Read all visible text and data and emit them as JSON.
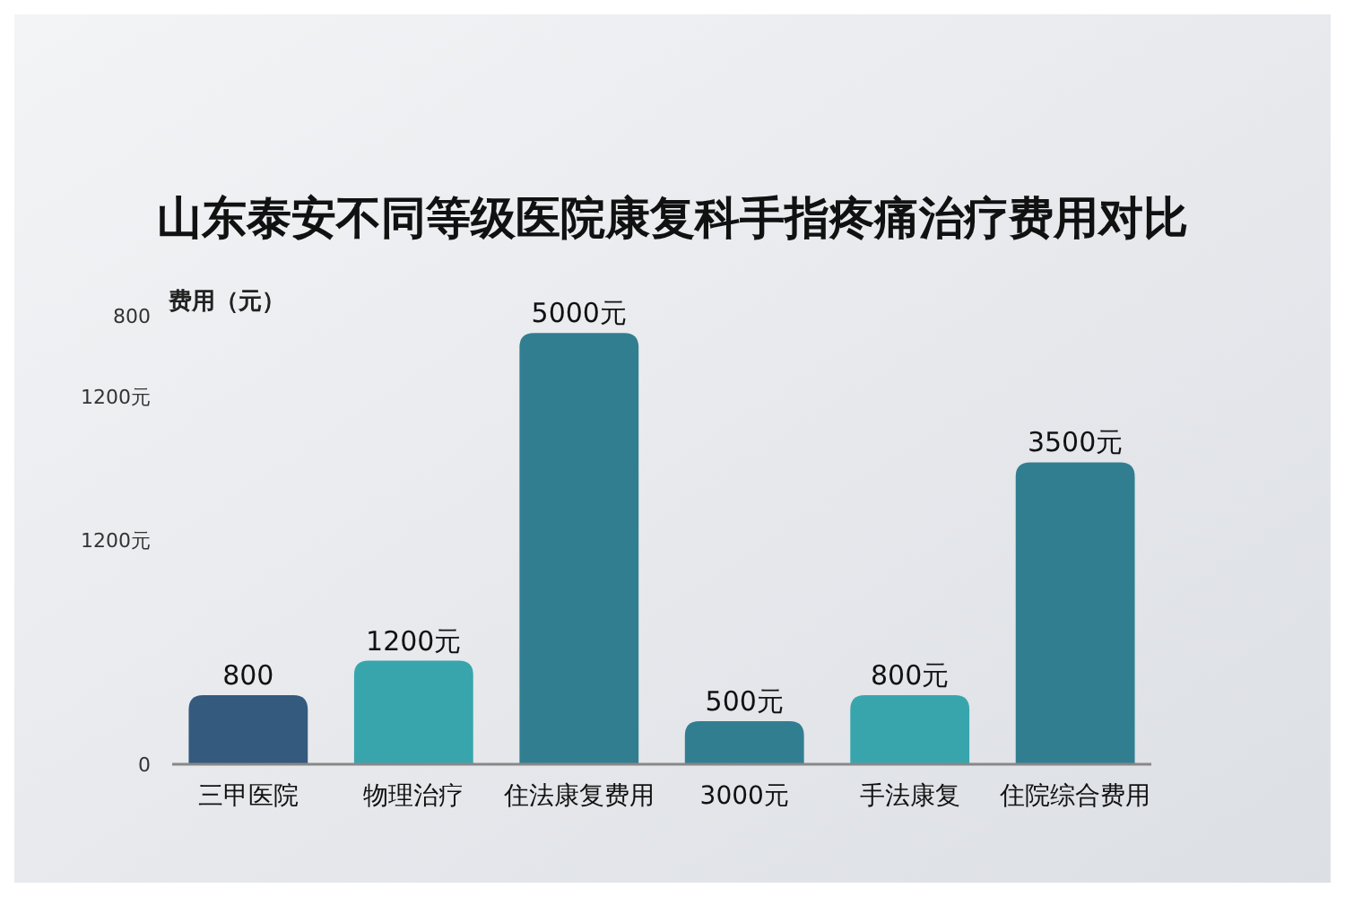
{
  "chart_data": {
    "type": "bar",
    "title": "山东泰安不同等级医院康复科手指疼痛治疗费用对比",
    "ylabel": "费用（元）",
    "categories": [
      "三甲医院",
      "物理治疗",
      "住法康复费用",
      "3000元",
      "手法康复",
      "住院综合费用"
    ],
    "values": [
      800,
      1200,
      5000,
      500,
      800,
      3500
    ],
    "colors": [
      "#345a7e",
      "#38a5ad",
      "#327e91",
      "#327e91",
      "#38a5ad",
      "#327e91"
    ],
    "value_labels": [
      "800",
      "1200元",
      "5000元",
      "500元",
      "800元",
      "3500元"
    ],
    "annotations": [
      "800",
      "1200元",
      "1200元",
      "0"
    ]
  }
}
